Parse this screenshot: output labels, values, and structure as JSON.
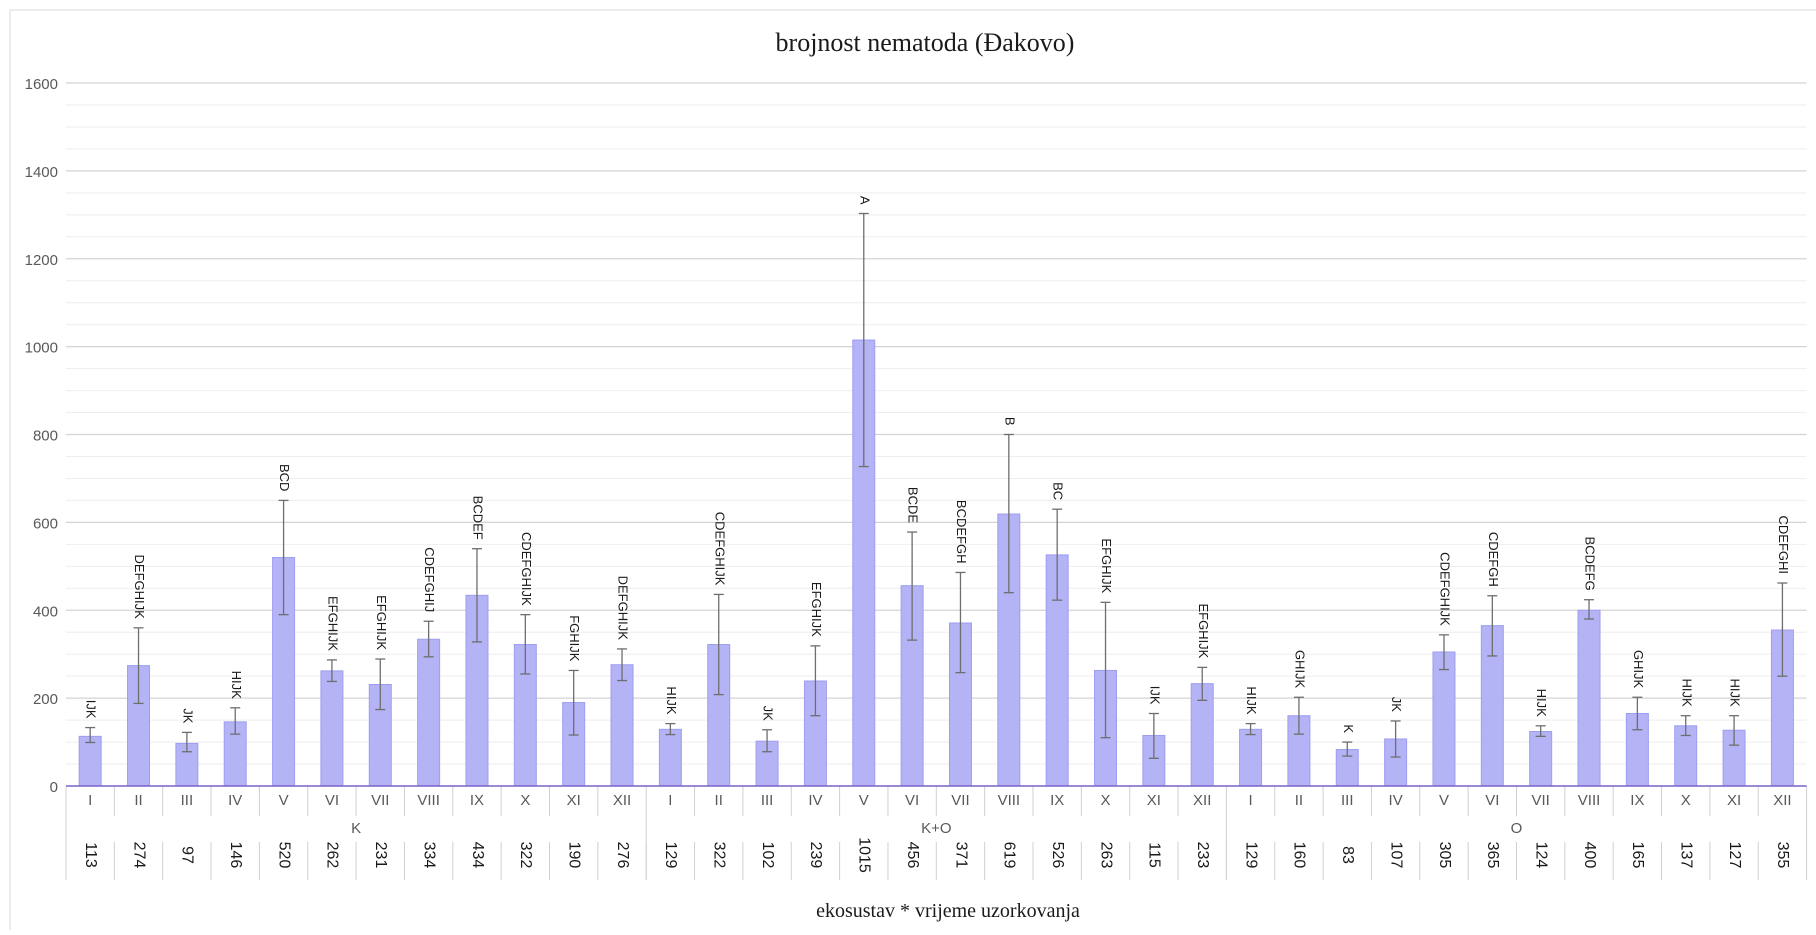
{
  "chart_data": {
    "type": "bar",
    "title": "brojnost nematoda (Đakovo)",
    "xlabel": "ekosustav * vrijeme uzorkovanja",
    "ylabel": "",
    "ylim": [
      0,
      1600
    ],
    "yticks": [
      0,
      200,
      400,
      600,
      800,
      1000,
      1200,
      1400,
      1600
    ],
    "grid": true,
    "legend": "none",
    "bar_color": "#b3b3f5",
    "bar_edge_color": "#9e9ef0",
    "axis_line_color": "#7b62c9",
    "groups": [
      {
        "name": "K",
        "categories": [
          "I",
          "II",
          "III",
          "IV",
          "V",
          "VI",
          "VII",
          "VIII",
          "IX",
          "X",
          "XI",
          "XII"
        ],
        "values": [
          113,
          274,
          97,
          146,
          520,
          262,
          231,
          334,
          434,
          322,
          190,
          276
        ],
        "value_labels": [
          "113",
          "274",
          "97",
          "146",
          "520",
          "262",
          "231",
          "334",
          "434",
          "322",
          "190",
          "276"
        ],
        "err_low": [
          99,
          188,
          78,
          118,
          390,
          238,
          174,
          294,
          328,
          255,
          116,
          240
        ],
        "err_high": [
          133,
          360,
          122,
          178,
          650,
          287,
          289,
          375,
          540,
          390,
          263,
          312
        ],
        "letters": [
          "IJK",
          "DEFGHIJK",
          "JK",
          "HIJK",
          "BCD",
          "EFGHIJK",
          "EFGHIJK",
          "CDEFGHIJ",
          "BCDEF",
          "CDEFGHIJK",
          "FGHIJK",
          "DEFGHIJK"
        ]
      },
      {
        "name": "K+O",
        "categories": [
          "I",
          "II",
          "III",
          "IV",
          "V",
          "VI",
          "VII",
          "VIII",
          "IX",
          "X",
          "XI",
          "XII"
        ],
        "values": [
          129,
          322,
          102,
          239,
          1015,
          456,
          371,
          619,
          526,
          263,
          115,
          233
        ],
        "value_labels": [
          "129",
          "322",
          "102",
          "239",
          "1015",
          "456",
          "371",
          "619",
          "526",
          "263",
          "115",
          "233"
        ],
        "err_low": [
          117,
          208,
          78,
          160,
          727,
          332,
          258,
          440,
          423,
          110,
          63,
          195
        ],
        "err_high": [
          142,
          436,
          128,
          319,
          1303,
          578,
          486,
          800,
          630,
          418,
          165,
          270
        ],
        "letters": [
          "HIJK",
          "CDEFGHIJK",
          "JK",
          "EFGHIJK",
          "A",
          "BCDE",
          "BCDEFGH",
          "B",
          "BC",
          "EFGHIJK",
          "IJK",
          "EFGHIJK"
        ]
      },
      {
        "name": "O",
        "categories": [
          "I",
          "II",
          "III",
          "IV",
          "V",
          "VI",
          "VII",
          "VIII",
          "IX",
          "X",
          "XI",
          "XII"
        ],
        "values": [
          129,
          160,
          83,
          107,
          305,
          365,
          124,
          400,
          165,
          137,
          127,
          355
        ],
        "value_labels": [
          "129",
          "160",
          "83",
          "107",
          "305",
          "365",
          "124",
          "400",
          "165",
          "137",
          "127",
          "355"
        ],
        "err_low": [
          117,
          118,
          68,
          66,
          265,
          296,
          113,
          380,
          128,
          115,
          93,
          250
        ],
        "err_high": [
          142,
          202,
          100,
          148,
          344,
          433,
          137,
          424,
          202,
          160,
          160,
          462
        ],
        "letters": [
          "HIJK",
          "GHIJK",
          "K",
          "JK",
          "CDEFGHIJK",
          "CDEFGH",
          "HIJK",
          "BCDEFG",
          "GHIJK",
          "HIJK",
          "HIJK",
          "CDEFGHI"
        ]
      }
    ]
  }
}
